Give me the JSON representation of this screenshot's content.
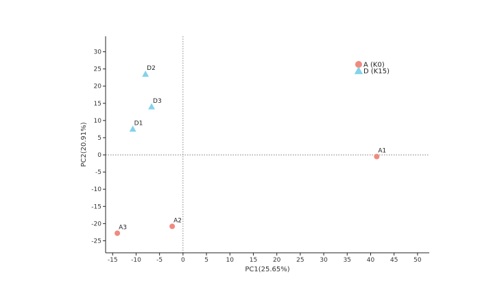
{
  "chart_data": {
    "type": "scatter",
    "title": "",
    "xlabel": "PC1(25.65%)",
    "ylabel": "PC2(20.91%)",
    "xlim": [
      -16.5,
      52.5
    ],
    "ylim": [
      -28.5,
      34.5
    ],
    "x_ticks": [
      -15,
      -10,
      -5,
      0,
      5,
      10,
      15,
      20,
      25,
      30,
      35,
      40,
      45,
      50
    ],
    "y_ticks": [
      -25,
      -20,
      -15,
      -10,
      -5,
      0,
      5,
      10,
      15,
      20,
      25,
      30
    ],
    "grid": false,
    "reference_lines": {
      "x": 0,
      "y": 0,
      "style": "dotted"
    },
    "legend_position": "top-right",
    "series": [
      {
        "name": "A (K0)",
        "marker": "circle",
        "color": "#f08a80",
        "points": [
          {
            "label": "A1",
            "x": 41.3,
            "y": -0.5
          },
          {
            "label": "A2",
            "x": -2.3,
            "y": -20.8
          },
          {
            "label": "A3",
            "x": -14.0,
            "y": -22.8
          }
        ]
      },
      {
        "name": "D (K15)",
        "marker": "triangle",
        "color": "#82d3ea",
        "points": [
          {
            "label": "D2",
            "x": -8.0,
            "y": 23.5
          },
          {
            "label": "D3",
            "x": -6.7,
            "y": 14.0
          },
          {
            "label": "D1",
            "x": -10.7,
            "y": 7.5
          }
        ]
      }
    ]
  }
}
